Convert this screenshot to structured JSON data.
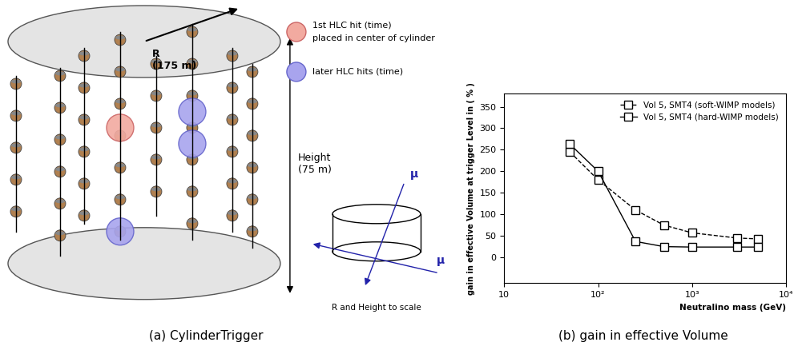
{
  "diagram": {
    "first_hit": [
      "1st HLC hit (time)",
      "placed in center of cylinder"
    ],
    "later_hits": "later HLC hits (time)",
    "radius": "R\n(175 m)",
    "height": "Height\n(75 m)",
    "muon_labels": [
      "μ",
      "μ"
    ],
    "scale_note": "R and Height to scale"
  },
  "captions": [
    "(a) CylinderTrigger",
    "(b) gain in effective Volume"
  ],
  "chart_data": {
    "type": "line",
    "x_label": "Neutralino mass (GeV)",
    "y_label": "gain in effective Volume at trigger Level in ( % )",
    "log": "x",
    "xlim": [
      10,
      10000
    ],
    "xticks": [
      {
        "value": 10,
        "label": "10"
      },
      {
        "value": 100,
        "label": "10²"
      },
      {
        "value": 1000,
        "label": "10³"
      },
      {
        "value": 10000,
        "label": "10⁴"
      }
    ],
    "ylim": [
      -60,
      380
    ],
    "yticks": [
      0,
      50,
      100,
      150,
      200,
      250,
      300,
      350
    ],
    "legend": "upper right",
    "grid": false,
    "x": [
      50,
      100,
      250,
      500,
      1000,
      3000,
      5000
    ],
    "series": [
      {
        "name": "Vol 5, SMT4 (soft-WIMP models)",
        "color": "#000000",
        "marker": "s",
        "line_style": "dashed",
        "values": [
          245,
          180,
          110,
          75,
          57,
          45,
          43
        ]
      },
      {
        "name": "Vol 5, SMT4 (hard-WIMP models)",
        "color": "#000000",
        "marker": "s",
        "line_style": "solid",
        "values": [
          263,
          200,
          37,
          25,
          24,
          24,
          24
        ]
      }
    ]
  }
}
